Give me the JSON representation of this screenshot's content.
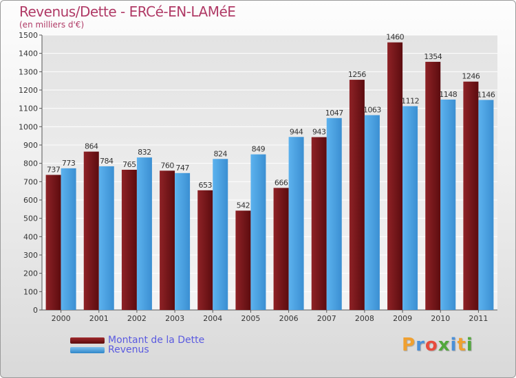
{
  "title": "Revenus/Dette - ERCé-EN-LAMéE",
  "subtitle": "(en milliers d'€)",
  "logo": {
    "text": "Proxiti",
    "letters": [
      "P",
      "r",
      "o",
      "x",
      "i",
      "t",
      "i"
    ],
    "colors": [
      "#f0a030",
      "#4a90d9",
      "#e84c3d",
      "#52a83c",
      "#4a90d9",
      "#f0a030",
      "#52a83c"
    ]
  },
  "legend": [
    {
      "label": "Montant de la Dette",
      "color": "#7a1518"
    },
    {
      "label": "Revenus",
      "color": "#4aa0e0"
    }
  ],
  "chart_data": {
    "type": "bar",
    "categories": [
      "2000",
      "2001",
      "2002",
      "2003",
      "2004",
      "2005",
      "2006",
      "2007",
      "2008",
      "2009",
      "2010",
      "2011"
    ],
    "series": [
      {
        "name": "Montant de la Dette",
        "color": "#7a1518",
        "values": [
          737,
          864,
          765,
          760,
          653,
          542,
          666,
          943,
          1256,
          1460,
          1354,
          1246
        ]
      },
      {
        "name": "Revenus",
        "color": "#4aa0e0",
        "values": [
          773,
          784,
          832,
          747,
          824,
          849,
          944,
          1047,
          1063,
          1112,
          1148,
          1146
        ]
      }
    ],
    "ylim": [
      0,
      1500
    ],
    "yticks": [
      0,
      100,
      200,
      300,
      400,
      500,
      600,
      700,
      800,
      900,
      1000,
      1100,
      1200,
      1300,
      1400,
      1500
    ],
    "grid": true,
    "xlabel": "",
    "ylabel": ""
  }
}
